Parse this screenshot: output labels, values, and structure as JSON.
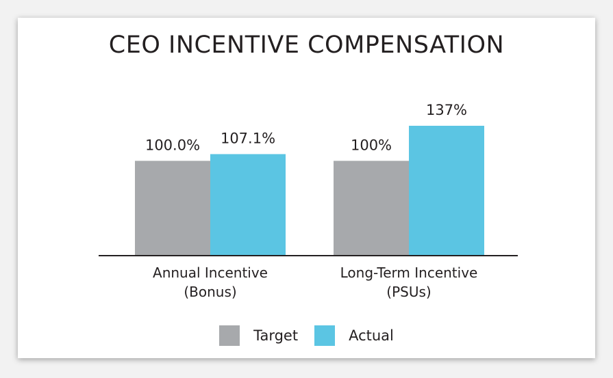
{
  "chart_data": {
    "type": "bar",
    "title": "CEO INCENTIVE COMPENSATION",
    "xlabel": "",
    "ylabel": "",
    "categories": [
      [
        "Annual Incentive",
        "(Bonus)"
      ],
      [
        "Long-Term Incentive",
        "(PSUs)"
      ]
    ],
    "series": [
      {
        "name": "Target",
        "color": "#a7a9ac",
        "values": [
          100.0,
          100
        ],
        "labels": [
          "100.0%",
          "100%"
        ]
      },
      {
        "name": "Actual",
        "color": "#5bc5e3",
        "values": [
          107.1,
          137
        ],
        "labels": [
          "107.1%",
          "137%"
        ]
      }
    ],
    "ylim": [
      0,
      137
    ],
    "grid": false,
    "legend": "bottom"
  }
}
